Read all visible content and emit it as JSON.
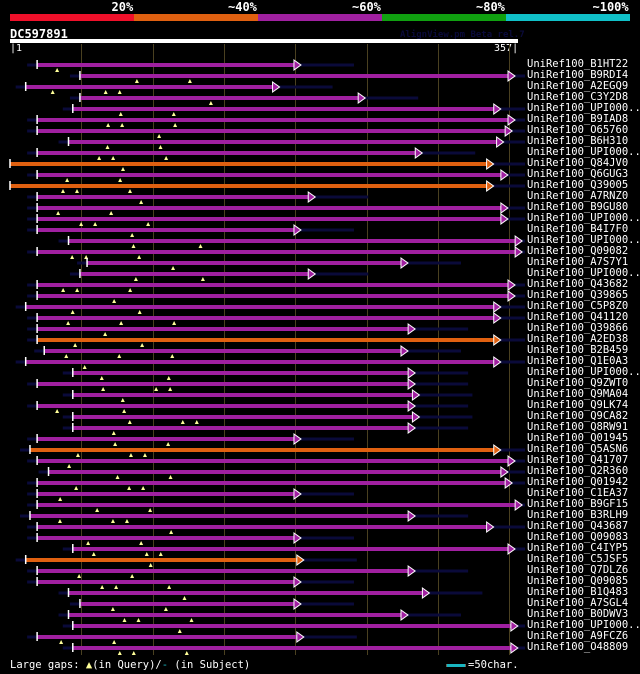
{
  "legend": {
    "segments": [
      {
        "label": "20%",
        "color": "#f0102a"
      },
      {
        "label": "~40%",
        "color": "#e06010"
      },
      {
        "label": "~60%",
        "color": "#a020a0"
      },
      {
        "label": "~80%",
        "color": "#10a010"
      },
      {
        "label": "~100%",
        "color": "#10c0c8"
      }
    ]
  },
  "query": {
    "name": "DC597891",
    "start": "1",
    "end": "357",
    "length": 357
  },
  "watermark": "AlignView.pm Beta rel.7",
  "colors": {
    "magenta": "#a020a0",
    "orange": "#e06010",
    "gap_line_navy": "#0a0a3a",
    "gap_marker": "#ffff99",
    "grid": "#4a4020"
  },
  "hits": [
    {
      "label": "UniRef100_B1HT22",
      "color": "magenta",
      "start": 20,
      "end": 200
    },
    {
      "label": "UniRef100_B9RDI4",
      "color": "magenta",
      "start": 50,
      "end": 350
    },
    {
      "label": "UniRef100_A2EGQ9",
      "color": "magenta",
      "start": 12,
      "end": 185
    },
    {
      "label": "UniRef100_C3Y2D8",
      "color": "magenta",
      "start": 50,
      "end": 245
    },
    {
      "label": "UniRef100_UPI000..",
      "color": "magenta",
      "start": 45,
      "end": 340
    },
    {
      "label": "UniRef100_B9IAD8",
      "color": "magenta",
      "start": 20,
      "end": 350
    },
    {
      "label": "UniRef100_O65760",
      "color": "magenta",
      "start": 20,
      "end": 348
    },
    {
      "label": "UniRef100_B6H310",
      "color": "magenta",
      "start": 42,
      "end": 342
    },
    {
      "label": "UniRef100_UPI000..",
      "color": "magenta",
      "start": 20,
      "end": 285
    },
    {
      "label": "UniRef100_Q84JV0",
      "color": "orange",
      "start": 1,
      "end": 335
    },
    {
      "label": "UniRef100_Q6GUG3",
      "color": "magenta",
      "start": 20,
      "end": 345
    },
    {
      "label": "UniRef100_Q39005",
      "color": "orange",
      "start": 1,
      "end": 335
    },
    {
      "label": "UniRef100_A7RNZ0",
      "color": "magenta",
      "start": 20,
      "end": 210
    },
    {
      "label": "UniRef100_B9GU80",
      "color": "magenta",
      "start": 20,
      "end": 345
    },
    {
      "label": "UniRef100_UPI000..",
      "color": "magenta",
      "start": 20,
      "end": 345
    },
    {
      "label": "UniRef100_B4I7F0",
      "color": "magenta",
      "start": 20,
      "end": 200
    },
    {
      "label": "UniRef100_UPI000..",
      "color": "magenta",
      "start": 42,
      "end": 355
    },
    {
      "label": "UniRef100_Q09082",
      "color": "magenta",
      "start": 20,
      "end": 355
    },
    {
      "label": "UniRef100_A7S7Y1",
      "color": "magenta",
      "start": 55,
      "end": 275
    },
    {
      "label": "UniRef100_UPI000..",
      "color": "magenta",
      "start": 50,
      "end": 210
    },
    {
      "label": "UniRef100_Q43682",
      "color": "magenta",
      "start": 20,
      "end": 350
    },
    {
      "label": "UniRef100_Q39865",
      "color": "magenta",
      "start": 20,
      "end": 350
    },
    {
      "label": "UniRef100_C5P8Z0",
      "color": "magenta",
      "start": 12,
      "end": 340
    },
    {
      "label": "UniRef100_Q41120",
      "color": "magenta",
      "start": 20,
      "end": 340
    },
    {
      "label": "UniRef100_Q39866",
      "color": "magenta",
      "start": 20,
      "end": 280
    },
    {
      "label": "UniRef100_A2ED38",
      "color": "orange",
      "start": 20,
      "end": 340
    },
    {
      "label": "UniRef100_B2B459",
      "color": "magenta",
      "start": 25,
      "end": 275
    },
    {
      "label": "UniRef100_Q1E0A3",
      "color": "magenta",
      "start": 12,
      "end": 340
    },
    {
      "label": "UniRef100_UPI000..",
      "color": "magenta",
      "start": 45,
      "end": 280
    },
    {
      "label": "UniRef100_Q9ZWT0",
      "color": "magenta",
      "start": 20,
      "end": 280
    },
    {
      "label": "UniRef100_Q9MA04",
      "color": "magenta",
      "start": 45,
      "end": 283
    },
    {
      "label": "UniRef100_Q9LK74",
      "color": "magenta",
      "start": 20,
      "end": 280
    },
    {
      "label": "UniRef100_Q9CA82",
      "color": "magenta",
      "start": 45,
      "end": 283
    },
    {
      "label": "UniRef100_Q8RW91",
      "color": "magenta",
      "start": 45,
      "end": 280
    },
    {
      "label": "UniRef100_Q01945",
      "color": "magenta",
      "start": 20,
      "end": 200
    },
    {
      "label": "UniRef100_Q5ASN6",
      "color": "orange",
      "start": 15,
      "end": 340
    },
    {
      "label": "UniRef100_Q41707",
      "color": "magenta",
      "start": 20,
      "end": 350
    },
    {
      "label": "UniRef100_Q2R360",
      "color": "magenta",
      "start": 28,
      "end": 345
    },
    {
      "label": "UniRef100_Q01942",
      "color": "magenta",
      "start": 20,
      "end": 348
    },
    {
      "label": "UniRef100_C1EA37",
      "color": "magenta",
      "start": 20,
      "end": 200
    },
    {
      "label": "UniRef100_B9GF15",
      "color": "magenta",
      "start": 20,
      "end": 355
    },
    {
      "label": "UniRef100_B3RLH9",
      "color": "magenta",
      "start": 15,
      "end": 280
    },
    {
      "label": "UniRef100_Q43687",
      "color": "magenta",
      "start": 20,
      "end": 335
    },
    {
      "label": "UniRef100_Q09083",
      "color": "magenta",
      "start": 20,
      "end": 200
    },
    {
      "label": "UniRef100_C4IYP5",
      "color": "magenta",
      "start": 45,
      "end": 350
    },
    {
      "label": "UniRef100_C5JSF5",
      "color": "orange",
      "start": 12,
      "end": 202
    },
    {
      "label": "UniRef100_Q7DLZ6",
      "color": "magenta",
      "start": 20,
      "end": 280
    },
    {
      "label": "UniRef100_Q09085",
      "color": "magenta",
      "start": 20,
      "end": 200
    },
    {
      "label": "UniRef100_B1Q483",
      "color": "magenta",
      "start": 42,
      "end": 290
    },
    {
      "label": "UniRef100_A7SGL4",
      "color": "magenta",
      "start": 50,
      "end": 200
    },
    {
      "label": "UniRef100_B0DWV3",
      "color": "magenta",
      "start": 42,
      "end": 275
    },
    {
      "label": "UniRef100_UPI000..",
      "color": "magenta",
      "start": 45,
      "end": 352
    },
    {
      "label": "UniRef100_A9FCZ6",
      "color": "magenta",
      "start": 20,
      "end": 202
    },
    {
      "label": "UniRef100_O48809",
      "color": "magenta",
      "start": 45,
      "end": 352
    }
  ],
  "footer": {
    "gaps_label": "Large gaps:",
    "query_marker": "▲",
    "in_query": "(in Query)/",
    "subject_marker": "-",
    "in_subject": " (in Subject)",
    "scale_text": "=50char."
  }
}
